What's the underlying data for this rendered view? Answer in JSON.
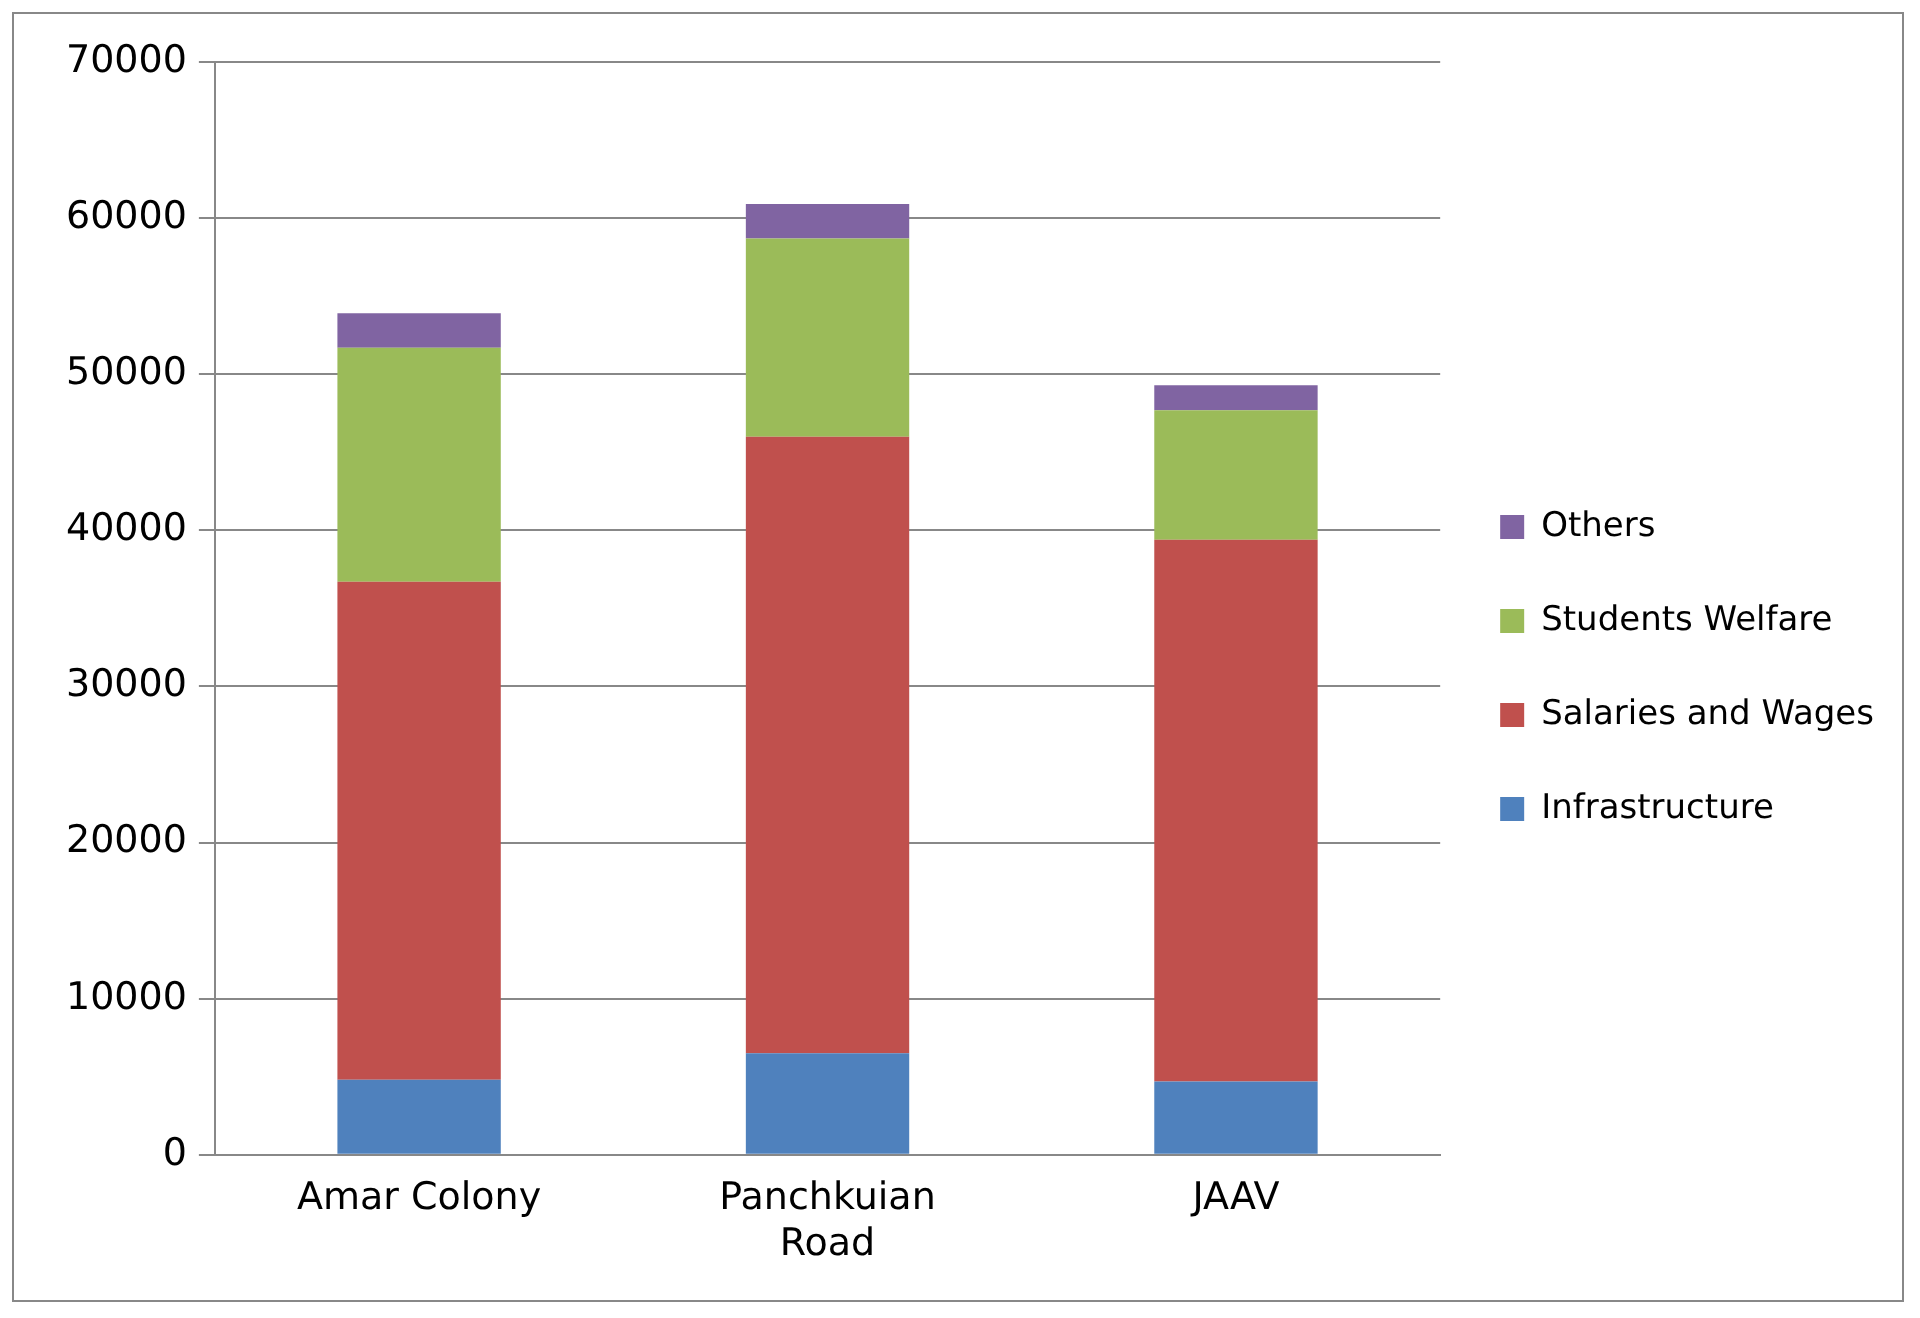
{
  "chart_data": {
    "type": "bar",
    "stacked": true,
    "categories": [
      "Amar Colony",
      "Panchkuian Road",
      "JAAV"
    ],
    "series": [
      {
        "name": "Infrastructure",
        "color": "#4f81bd",
        "values": [
          4800,
          6500,
          4700
        ]
      },
      {
        "name": "Salaries and Wages",
        "color": "#c0504d",
        "values": [
          31900,
          39500,
          34700
        ]
      },
      {
        "name": "Students Welfare",
        "color": "#9bbb59",
        "values": [
          15000,
          12700,
          8300
        ]
      },
      {
        "name": "Others",
        "color": "#8064a2",
        "values": [
          2200,
          2200,
          1600
        ]
      }
    ],
    "ylim": [
      0,
      70000
    ],
    "yticks": [
      0,
      10000,
      20000,
      30000,
      40000,
      50000,
      60000,
      70000
    ],
    "grid": "y",
    "legend": "right"
  }
}
